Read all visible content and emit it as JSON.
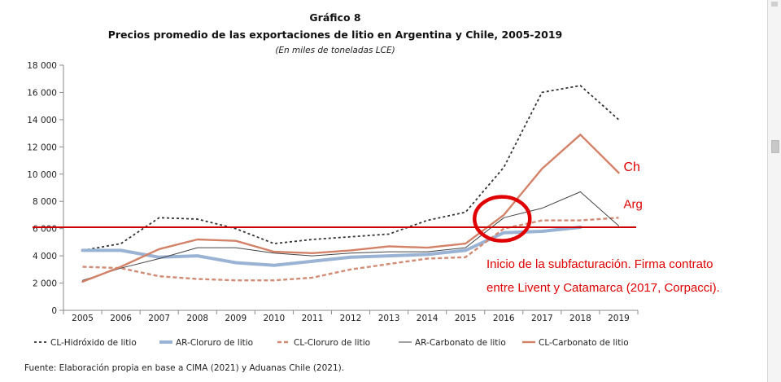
{
  "chart_data": {
    "type": "line",
    "title": "Gráfico 8",
    "subtitle": "Precios promedio de las exportaciones de litio en Argentina y Chile, 2005-2019",
    "note": "(En miles de toneladas LCE)",
    "categories": [
      "2005",
      "2006",
      "2007",
      "2008",
      "2009",
      "2010",
      "2011",
      "2012",
      "2013",
      "2014",
      "2015",
      "2016",
      "2017",
      "2018",
      "2019"
    ],
    "ylim": [
      0,
      18000
    ],
    "yticks": [
      0,
      2000,
      4000,
      6000,
      8000,
      10000,
      12000,
      14000,
      16000,
      18000
    ],
    "ytick_labels": [
      "0",
      "2 000",
      "4 000",
      "6 000",
      "8 000",
      "10 000",
      "12 000",
      "14 000",
      "16 000",
      "18 000"
    ],
    "series": [
      {
        "name": "CL-Hidróxido de litio",
        "color": "#333333",
        "style": "dotted",
        "width": 1.8,
        "values": [
          4400,
          4900,
          6800,
          6700,
          6000,
          4900,
          5200,
          5400,
          5600,
          6600,
          7200,
          10500,
          16000,
          16500,
          14000
        ]
      },
      {
        "name": "AR-Cloruro de litio",
        "color": "#9ab3d5",
        "style": "solid",
        "width": 4,
        "values": [
          4400,
          4400,
          3900,
          4000,
          3500,
          3300,
          3600,
          3900,
          4000,
          4100,
          4400,
          5700,
          5800,
          6100,
          null
        ]
      },
      {
        "name": "CL-Cloruro de litio",
        "color": "#d28c75",
        "style": "dashed",
        "width": 2.4,
        "values": [
          3200,
          3100,
          2500,
          2300,
          2200,
          2200,
          2400,
          3000,
          3400,
          3800,
          3900,
          6000,
          6600,
          6600,
          6800
        ]
      },
      {
        "name": "AR-Carbonato de litio",
        "color": "#444444",
        "style": "solid",
        "width": 1,
        "values": [
          2200,
          3100,
          3800,
          4600,
          4600,
          4200,
          4000,
          4200,
          4300,
          4300,
          4600,
          6800,
          7500,
          8700,
          6200
        ]
      },
      {
        "name": "CL-Carbonato de litio",
        "color": "#d38268",
        "style": "solid",
        "width": 2.4,
        "values": [
          2100,
          3200,
          4500,
          5200,
          5100,
          4300,
          4200,
          4400,
          4700,
          4600,
          4900,
          7000,
          10400,
          12900,
          10100
        ]
      }
    ],
    "reference_line": {
      "value": 6100,
      "color": "#cc0000"
    },
    "annotations": {
      "ch_label": "Ch",
      "arg_label": "Arg",
      "note_line1": "Inicio de la subfacturación. Firma contrato",
      "note_line2": "entre Livent y Catamarca (2017, Corpacci).",
      "circle_year": "2016",
      "circle_value": 6600,
      "ch_anchor": {
        "year": "2019",
        "value": 10100
      },
      "arg_anchor": {
        "year": "2019",
        "value": 6800
      }
    },
    "source": "Fuente: Elaboración propia en base a CIMA (2021) y Aduanas Chile (2021)."
  }
}
